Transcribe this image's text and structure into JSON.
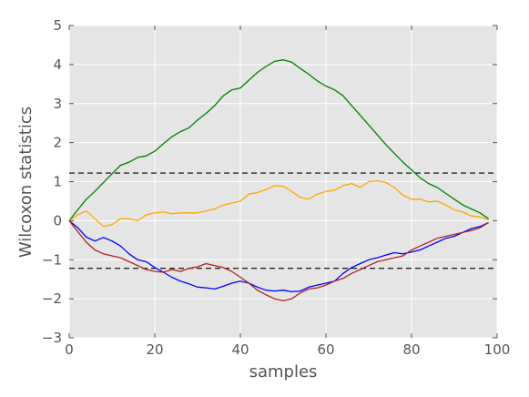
{
  "chart_data": {
    "type": "line",
    "title": "",
    "xlabel": "samples",
    "ylabel": "Wilcoxon statistics",
    "xlim": [
      0,
      100
    ],
    "ylim": [
      -3,
      5
    ],
    "x_ticks": [
      "0",
      "20",
      "40",
      "60",
      "80",
      "100"
    ],
    "y_ticks": [
      "5",
      "4",
      "3",
      "2",
      "1",
      "0",
      "−1",
      "−2",
      "−3"
    ],
    "grid": true,
    "legend": "none",
    "thresholds": [
      1.22,
      -1.22
    ],
    "series": [
      {
        "color": "#008000",
        "x": [
          0,
          2,
          4,
          6,
          8,
          10,
          12,
          14,
          16,
          18,
          20,
          22,
          24,
          26,
          28,
          30,
          32,
          34,
          36,
          38,
          40,
          42,
          44,
          46,
          48,
          50,
          52,
          54,
          56,
          58,
          60,
          62,
          64,
          66,
          68,
          70,
          72,
          74,
          76,
          78,
          80,
          82,
          84,
          86,
          88,
          90,
          92,
          94,
          96,
          98
        ],
        "y": [
          0,
          0.28,
          0.55,
          0.75,
          0.98,
          1.2,
          1.42,
          1.5,
          1.62,
          1.66,
          1.78,
          1.97,
          2.15,
          2.28,
          2.38,
          2.58,
          2.75,
          2.95,
          3.2,
          3.35,
          3.4,
          3.6,
          3.8,
          3.95,
          4.08,
          4.12,
          4.06,
          3.9,
          3.75,
          3.58,
          3.45,
          3.35,
          3.2,
          2.95,
          2.7,
          2.45,
          2.2,
          1.95,
          1.72,
          1.5,
          1.3,
          1.1,
          0.95,
          0.85,
          0.7,
          0.55,
          0.4,
          0.3,
          0.2,
          0.05
        ]
      },
      {
        "color": "#ffa500",
        "x": [
          0,
          2,
          4,
          6,
          8,
          10,
          12,
          14,
          16,
          18,
          20,
          22,
          24,
          26,
          28,
          30,
          32,
          34,
          36,
          38,
          40,
          42,
          44,
          46,
          48,
          50,
          52,
          54,
          56,
          58,
          60,
          62,
          64,
          66,
          68,
          70,
          72,
          74,
          76,
          78,
          80,
          82,
          84,
          86,
          88,
          90,
          92,
          94,
          96,
          98
        ],
        "y": [
          0,
          0.15,
          0.25,
          0.05,
          -0.15,
          -0.1,
          0.05,
          0.05,
          0,
          0.15,
          0.2,
          0.22,
          0.18,
          0.2,
          0.2,
          0.2,
          0.25,
          0.3,
          0.4,
          0.45,
          0.5,
          0.68,
          0.72,
          0.8,
          0.9,
          0.88,
          0.75,
          0.6,
          0.55,
          0.68,
          0.75,
          0.78,
          0.9,
          0.95,
          0.85,
          1.0,
          1.02,
          0.98,
          0.85,
          0.65,
          0.55,
          0.55,
          0.48,
          0.5,
          0.4,
          0.28,
          0.22,
          0.12,
          0.1,
          0.02
        ]
      },
      {
        "color": "#0000ff",
        "x": [
          0,
          2,
          4,
          6,
          8,
          10,
          12,
          14,
          16,
          18,
          20,
          22,
          24,
          26,
          28,
          30,
          32,
          34,
          36,
          38,
          40,
          42,
          44,
          46,
          48,
          50,
          52,
          54,
          56,
          58,
          60,
          62,
          64,
          66,
          68,
          70,
          72,
          74,
          76,
          78,
          80,
          82,
          84,
          86,
          88,
          90,
          92,
          94,
          96,
          98
        ],
        "y": [
          0,
          -0.18,
          -0.42,
          -0.52,
          -0.43,
          -0.52,
          -0.65,
          -0.85,
          -1.0,
          -1.05,
          -1.2,
          -1.32,
          -1.45,
          -1.55,
          -1.62,
          -1.7,
          -1.72,
          -1.75,
          -1.68,
          -1.6,
          -1.55,
          -1.6,
          -1.7,
          -1.78,
          -1.8,
          -1.78,
          -1.82,
          -1.8,
          -1.7,
          -1.65,
          -1.6,
          -1.55,
          -1.35,
          -1.2,
          -1.1,
          -1.0,
          -0.95,
          -0.88,
          -0.82,
          -0.85,
          -0.8,
          -0.75,
          -0.65,
          -0.55,
          -0.45,
          -0.4,
          -0.3,
          -0.2,
          -0.15,
          -0.05
        ]
      },
      {
        "color": "#b22222",
        "x": [
          0,
          2,
          4,
          6,
          8,
          10,
          12,
          14,
          16,
          18,
          20,
          22,
          24,
          26,
          28,
          30,
          32,
          34,
          36,
          38,
          40,
          42,
          44,
          46,
          48,
          50,
          52,
          54,
          56,
          58,
          60,
          62,
          64,
          66,
          68,
          70,
          72,
          74,
          76,
          78,
          80,
          82,
          84,
          86,
          88,
          90,
          92,
          94,
          96,
          98
        ],
        "y": [
          0,
          -0.28,
          -0.55,
          -0.75,
          -0.85,
          -0.9,
          -0.95,
          -1.05,
          -1.15,
          -1.25,
          -1.3,
          -1.32,
          -1.25,
          -1.3,
          -1.22,
          -1.18,
          -1.1,
          -1.15,
          -1.2,
          -1.3,
          -1.45,
          -1.6,
          -1.78,
          -1.9,
          -2.0,
          -2.05,
          -2.0,
          -1.85,
          -1.75,
          -1.72,
          -1.65,
          -1.55,
          -1.48,
          -1.35,
          -1.25,
          -1.15,
          -1.05,
          -1.0,
          -0.95,
          -0.9,
          -0.75,
          -0.65,
          -0.55,
          -0.45,
          -0.4,
          -0.35,
          -0.3,
          -0.25,
          -0.18,
          -0.05
        ]
      }
    ]
  }
}
